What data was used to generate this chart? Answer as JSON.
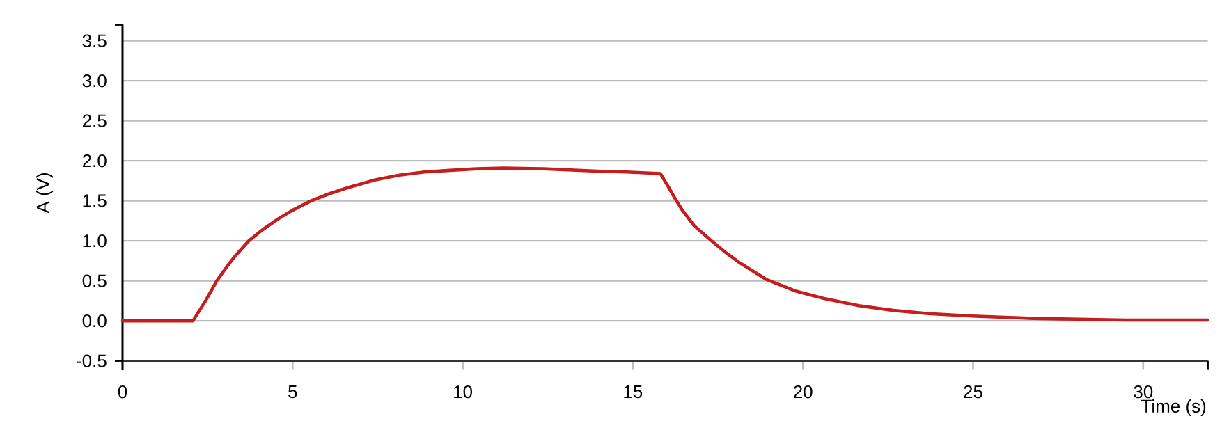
{
  "chart_data": {
    "type": "line",
    "xlabel": "Time (s)",
    "ylabel": "A (V)",
    "x": [
      0,
      2.07,
      2.44,
      2.77,
      3.09,
      3.31,
      3.71,
      4.12,
      4.56,
      4.99,
      5.54,
      6.09,
      6.67,
      7.41,
      8.14,
      8.87,
      9.62,
      10.41,
      11.2,
      12.38,
      13.95,
      14.82,
      15.81,
      16.05,
      16.28,
      16.46,
      16.8,
      17.31,
      17.68,
      18.16,
      18.91,
      19.8,
      20.62,
      21.64,
      22.66,
      23.69,
      24.98,
      26.76,
      28.12,
      29.49,
      30.85,
      31.9
    ],
    "series": [
      {
        "color": "#c41e1e",
        "values": [
          0,
          0,
          0.25,
          0.5,
          0.69,
          0.81,
          1.0,
          1.14,
          1.27,
          1.38,
          1.5,
          1.59,
          1.67,
          1.76,
          1.82,
          1.86,
          1.88,
          1.9,
          1.91,
          1.9,
          1.87,
          1.86,
          1.84,
          1.67,
          1.5,
          1.38,
          1.19,
          1.0,
          0.87,
          0.72,
          0.52,
          0.37,
          0.28,
          0.19,
          0.13,
          0.09,
          0.06,
          0.03,
          0.02,
          0.01,
          0.01,
          0.01
        ]
      }
    ],
    "xlim": [
      0,
      31.9
    ],
    "ylim": [
      -0.5,
      3.7
    ],
    "xticks": [
      0,
      5,
      10,
      15,
      20,
      25,
      30
    ],
    "yticks": [
      -0.5,
      {
        "value": 0,
        "label": "0.0"
      },
      0.5,
      {
        "value": 1,
        "label": "1.0"
      },
      1.5,
      {
        "value": 2,
        "label": "2.0"
      },
      2.5,
      {
        "value": 3,
        "label": "3.0"
      },
      3.5
    ],
    "grid": "y"
  }
}
